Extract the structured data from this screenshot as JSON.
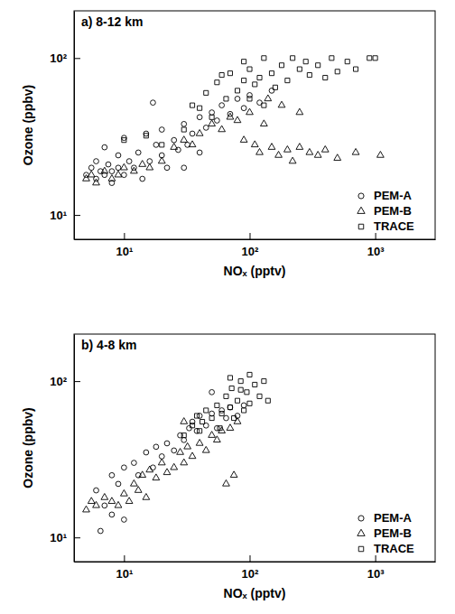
{
  "chart_data": [
    {
      "type": "scatter",
      "title": "a) 8-12 km",
      "x_label": "NOₓ (pptv)",
      "y_label": "Ozone (ppbv)",
      "log": true,
      "legend": "lower right",
      "xlim": [
        4,
        3000
      ],
      "ylim": [
        7,
        200
      ],
      "xticks": [
        {
          "value": 10,
          "label": "10¹"
        },
        {
          "value": 100,
          "label": "10²"
        },
        {
          "value": 1000,
          "label": "10³"
        }
      ],
      "yticks": [
        {
          "value": 10,
          "label": "10¹"
        },
        {
          "value": 100,
          "label": "10²"
        }
      ],
      "series": [
        {
          "name": "PEM-A",
          "color": "#000000",
          "marker": "circle",
          "x": [
            5,
            5.5,
            6,
            6,
            6.5,
            7,
            7,
            7.5,
            8,
            8,
            9,
            9,
            10,
            10,
            11,
            12,
            13,
            14,
            15,
            16,
            18,
            20,
            20,
            22,
            25,
            27,
            30,
            32,
            35,
            40,
            45,
            50,
            55,
            60,
            70,
            80,
            90,
            100,
            120,
            150,
            30,
            40,
            17
          ],
          "values": [
            18,
            20,
            17,
            22,
            19,
            18,
            27,
            21,
            16,
            19,
            20,
            24,
            18,
            31,
            22,
            20,
            25,
            17,
            33,
            22,
            28,
            24,
            35,
            20,
            30,
            26,
            38,
            28,
            33,
            42,
            36,
            45,
            40,
            50,
            44,
            55,
            48,
            58,
            52,
            62,
            20,
            25,
            52
          ]
        },
        {
          "name": "PEM-B",
          "color": "#000000",
          "marker": "triangle",
          "x": [
            5,
            5.5,
            6,
            7,
            8,
            9,
            10,
            12,
            14,
            16,
            20,
            25,
            30,
            35,
            40,
            50,
            60,
            70,
            80,
            90,
            100,
            110,
            120,
            130,
            150,
            170,
            200,
            220,
            250,
            300,
            350,
            400,
            500,
            700,
            1100,
            180,
            250,
            140
          ],
          "values": [
            17,
            18,
            16,
            19,
            17,
            18,
            20,
            19,
            21,
            20,
            22,
            27,
            30,
            28,
            33,
            38,
            35,
            42,
            40,
            30,
            45,
            28,
            25,
            38,
            27,
            24,
            26,
            22,
            27,
            25,
            24,
            26,
            23,
            25,
            24,
            50,
            45,
            55
          ]
        },
        {
          "name": "TRACE",
          "color": "#000000",
          "marker": "square",
          "x": [
            10,
            15,
            20,
            30,
            35,
            40,
            45,
            50,
            55,
            60,
            65,
            70,
            80,
            90,
            100,
            100,
            110,
            120,
            130,
            150,
            160,
            180,
            200,
            220,
            250,
            280,
            300,
            350,
            400,
            450,
            500,
            600,
            700,
            900,
            1000,
            130,
            90
          ],
          "values": [
            30,
            32,
            28,
            35,
            50,
            48,
            60,
            42,
            70,
            78,
            55,
            80,
            62,
            72,
            55,
            85,
            68,
            75,
            50,
            80,
            65,
            90,
            72,
            100,
            85,
            95,
            78,
            90,
            75,
            100,
            82,
            95,
            85,
            100,
            100,
            100,
            95
          ]
        }
      ]
    },
    {
      "type": "scatter",
      "title": "b) 4-8 km",
      "x_label": "NOₓ (pptv)",
      "y_label": "Ozone (ppbv)",
      "log": true,
      "legend": "lower right",
      "xlim": [
        4,
        3000
      ],
      "ylim": [
        7,
        200
      ],
      "xticks": [
        {
          "value": 10,
          "label": "10¹"
        },
        {
          "value": 100,
          "label": "10²"
        },
        {
          "value": 1000,
          "label": "10³"
        }
      ],
      "yticks": [
        {
          "value": 10,
          "label": "10¹"
        },
        {
          "value": 100,
          "label": "10²"
        }
      ],
      "series": [
        {
          "name": "PEM-A",
          "color": "#000000",
          "marker": "circle",
          "x": [
            6,
            6.5,
            7,
            8,
            8,
            9,
            10,
            10,
            12,
            13,
            15,
            17,
            18,
            20,
            22,
            25,
            28,
            30,
            33,
            35,
            38,
            40,
            45,
            50,
            55,
            60,
            65,
            70,
            80,
            90,
            50
          ],
          "values": [
            20,
            11,
            16,
            25,
            14,
            22,
            28,
            13,
            30,
            25,
            35,
            28,
            38,
            33,
            40,
            36,
            45,
            42,
            50,
            55,
            48,
            60,
            52,
            62,
            50,
            65,
            58,
            68,
            60,
            70,
            85
          ]
        },
        {
          "name": "PEM-B",
          "color": "#000000",
          "marker": "triangle",
          "x": [
            5,
            5.5,
            6,
            7,
            8,
            9,
            10,
            11,
            12,
            13,
            14,
            15,
            16,
            18,
            20,
            22,
            25,
            28,
            30,
            32,
            35,
            40,
            45,
            50,
            55,
            60,
            65,
            70,
            75,
            80,
            30
          ],
          "values": [
            15,
            17,
            16,
            18,
            17,
            16,
            19,
            17,
            22,
            20,
            25,
            18,
            27,
            24,
            30,
            26,
            28,
            35,
            30,
            38,
            33,
            40,
            36,
            45,
            42,
            48,
            22,
            50,
            25,
            55,
            55
          ]
        },
        {
          "name": "TRACE",
          "color": "#000000",
          "marker": "square",
          "x": [
            30,
            35,
            38,
            40,
            42,
            45,
            50,
            55,
            58,
            60,
            65,
            70,
            72,
            75,
            80,
            85,
            90,
            95,
            100,
            100,
            110,
            120,
            130,
            140,
            70,
            85
          ],
          "values": [
            45,
            52,
            60,
            48,
            55,
            65,
            58,
            70,
            50,
            62,
            80,
            68,
            90,
            58,
            75,
            100,
            65,
            85,
            110,
            72,
            95,
            80,
            100,
            75,
            105,
            88
          ]
        }
      ]
    }
  ]
}
